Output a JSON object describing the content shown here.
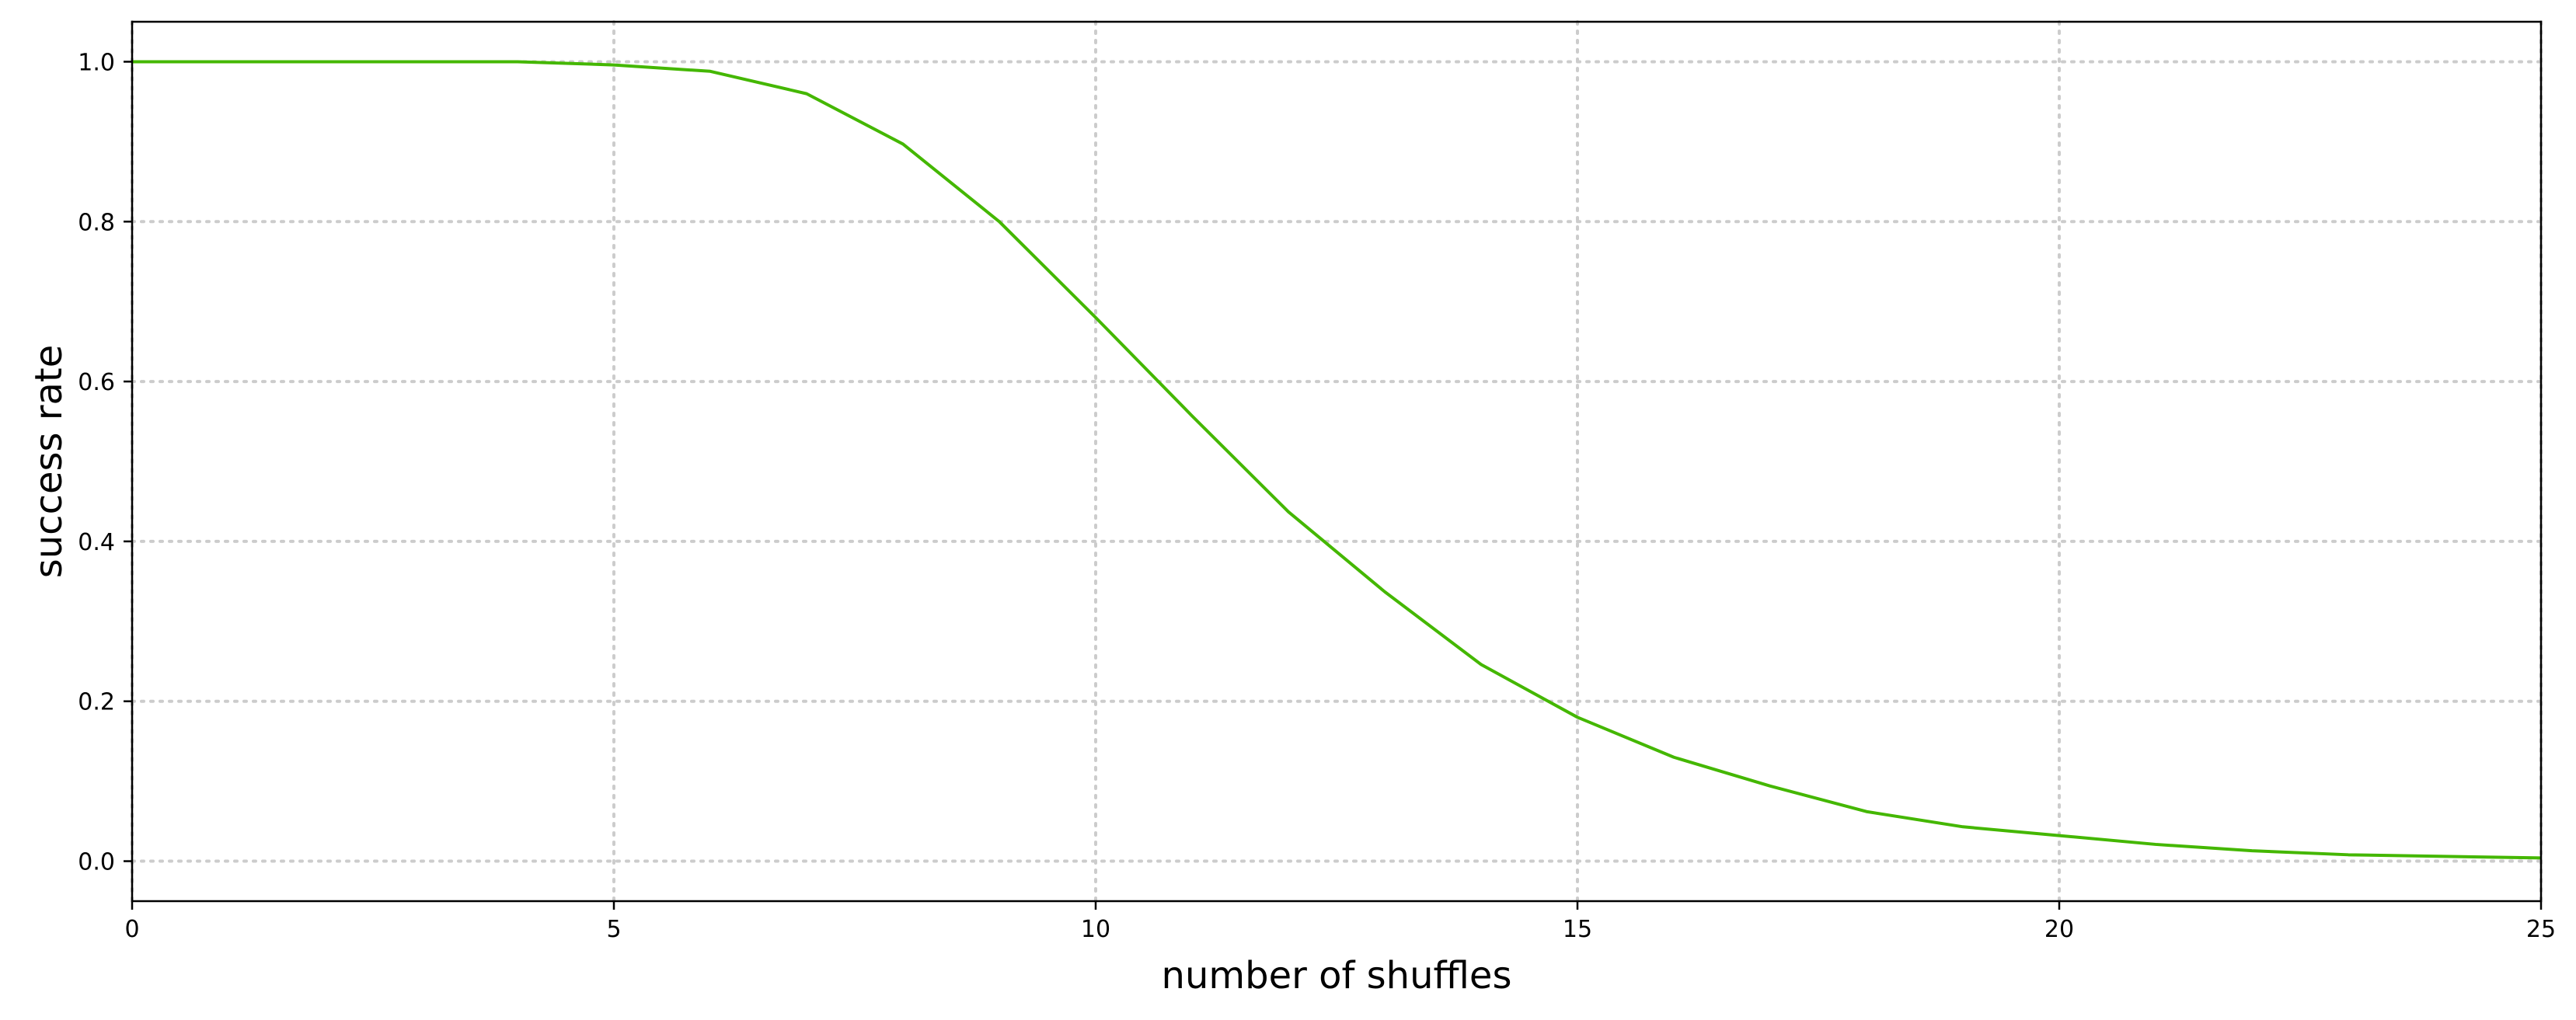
{
  "chart_data": {
    "type": "line",
    "title": "",
    "xlabel": "number of shuffles",
    "ylabel": "success rate",
    "xlim": [
      0,
      25
    ],
    "ylim": [
      -0.05,
      1.05
    ],
    "grid": true,
    "grid_style": "dotted",
    "x_ticks": [
      0,
      5,
      10,
      15,
      20,
      25
    ],
    "x_tick_labels": [
      "0",
      "5",
      "10",
      "15",
      "20",
      "25"
    ],
    "y_ticks": [
      0.0,
      0.2,
      0.4,
      0.6,
      0.8,
      1.0
    ],
    "y_tick_labels": [
      "0.0",
      "0.2",
      "0.4",
      "0.6",
      "0.8",
      "1.0"
    ],
    "series": [
      {
        "color": "#44b700",
        "x": [
          0,
          1,
          2,
          3,
          4,
          5,
          6,
          7,
          8,
          9,
          10,
          11,
          12,
          13,
          14,
          15,
          16,
          17,
          18,
          19,
          20,
          21,
          22,
          23,
          24,
          25
        ],
        "y": [
          1.0,
          1.0,
          1.0,
          1.0,
          1.0,
          0.996,
          0.988,
          0.96,
          0.897,
          0.8,
          0.68,
          0.557,
          0.437,
          0.337,
          0.246,
          0.18,
          0.13,
          0.094,
          0.062,
          0.043,
          0.032,
          0.021,
          0.013,
          0.008,
          0.006,
          0.004
        ]
      }
    ]
  }
}
